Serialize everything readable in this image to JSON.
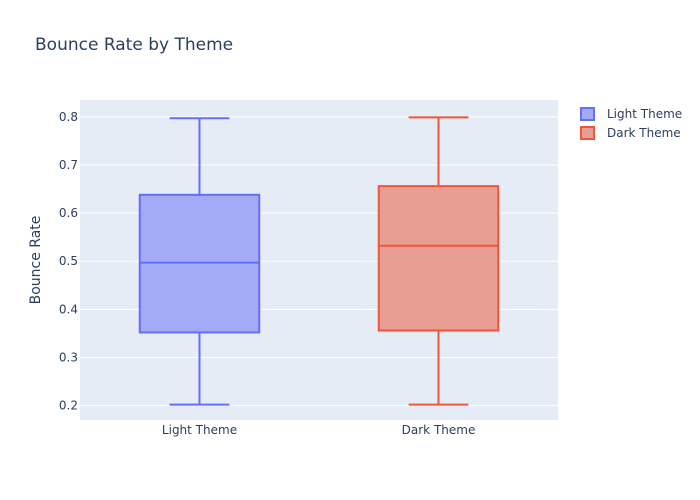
{
  "chart_data": {
    "type": "box",
    "title": "Bounce Rate by Theme",
    "xlabel": "",
    "ylabel": "Bounce Rate",
    "ylim": [
      0.17,
      0.835
    ],
    "yticks": [
      0.2,
      0.3,
      0.4,
      0.5,
      0.6,
      0.7,
      0.8
    ],
    "categories": [
      "Light Theme",
      "Dark Theme"
    ],
    "grid": true,
    "legend_position": "top-right",
    "series": [
      {
        "name": "Light Theme",
        "min": 0.202,
        "q1": 0.352,
        "median": 0.497,
        "q3": 0.638,
        "max": 0.797,
        "line_color": "#636efa",
        "fill_color": "#a3aaf6"
      },
      {
        "name": "Dark Theme",
        "min": 0.202,
        "q1": 0.356,
        "median": 0.532,
        "q3": 0.656,
        "max": 0.799,
        "line_color": "#ef553b",
        "fill_color": "#e99e93"
      }
    ],
    "colors": {
      "plot_background": "#e5ecf6",
      "grid": "#ffffff",
      "text": "#2a3f5f"
    }
  }
}
